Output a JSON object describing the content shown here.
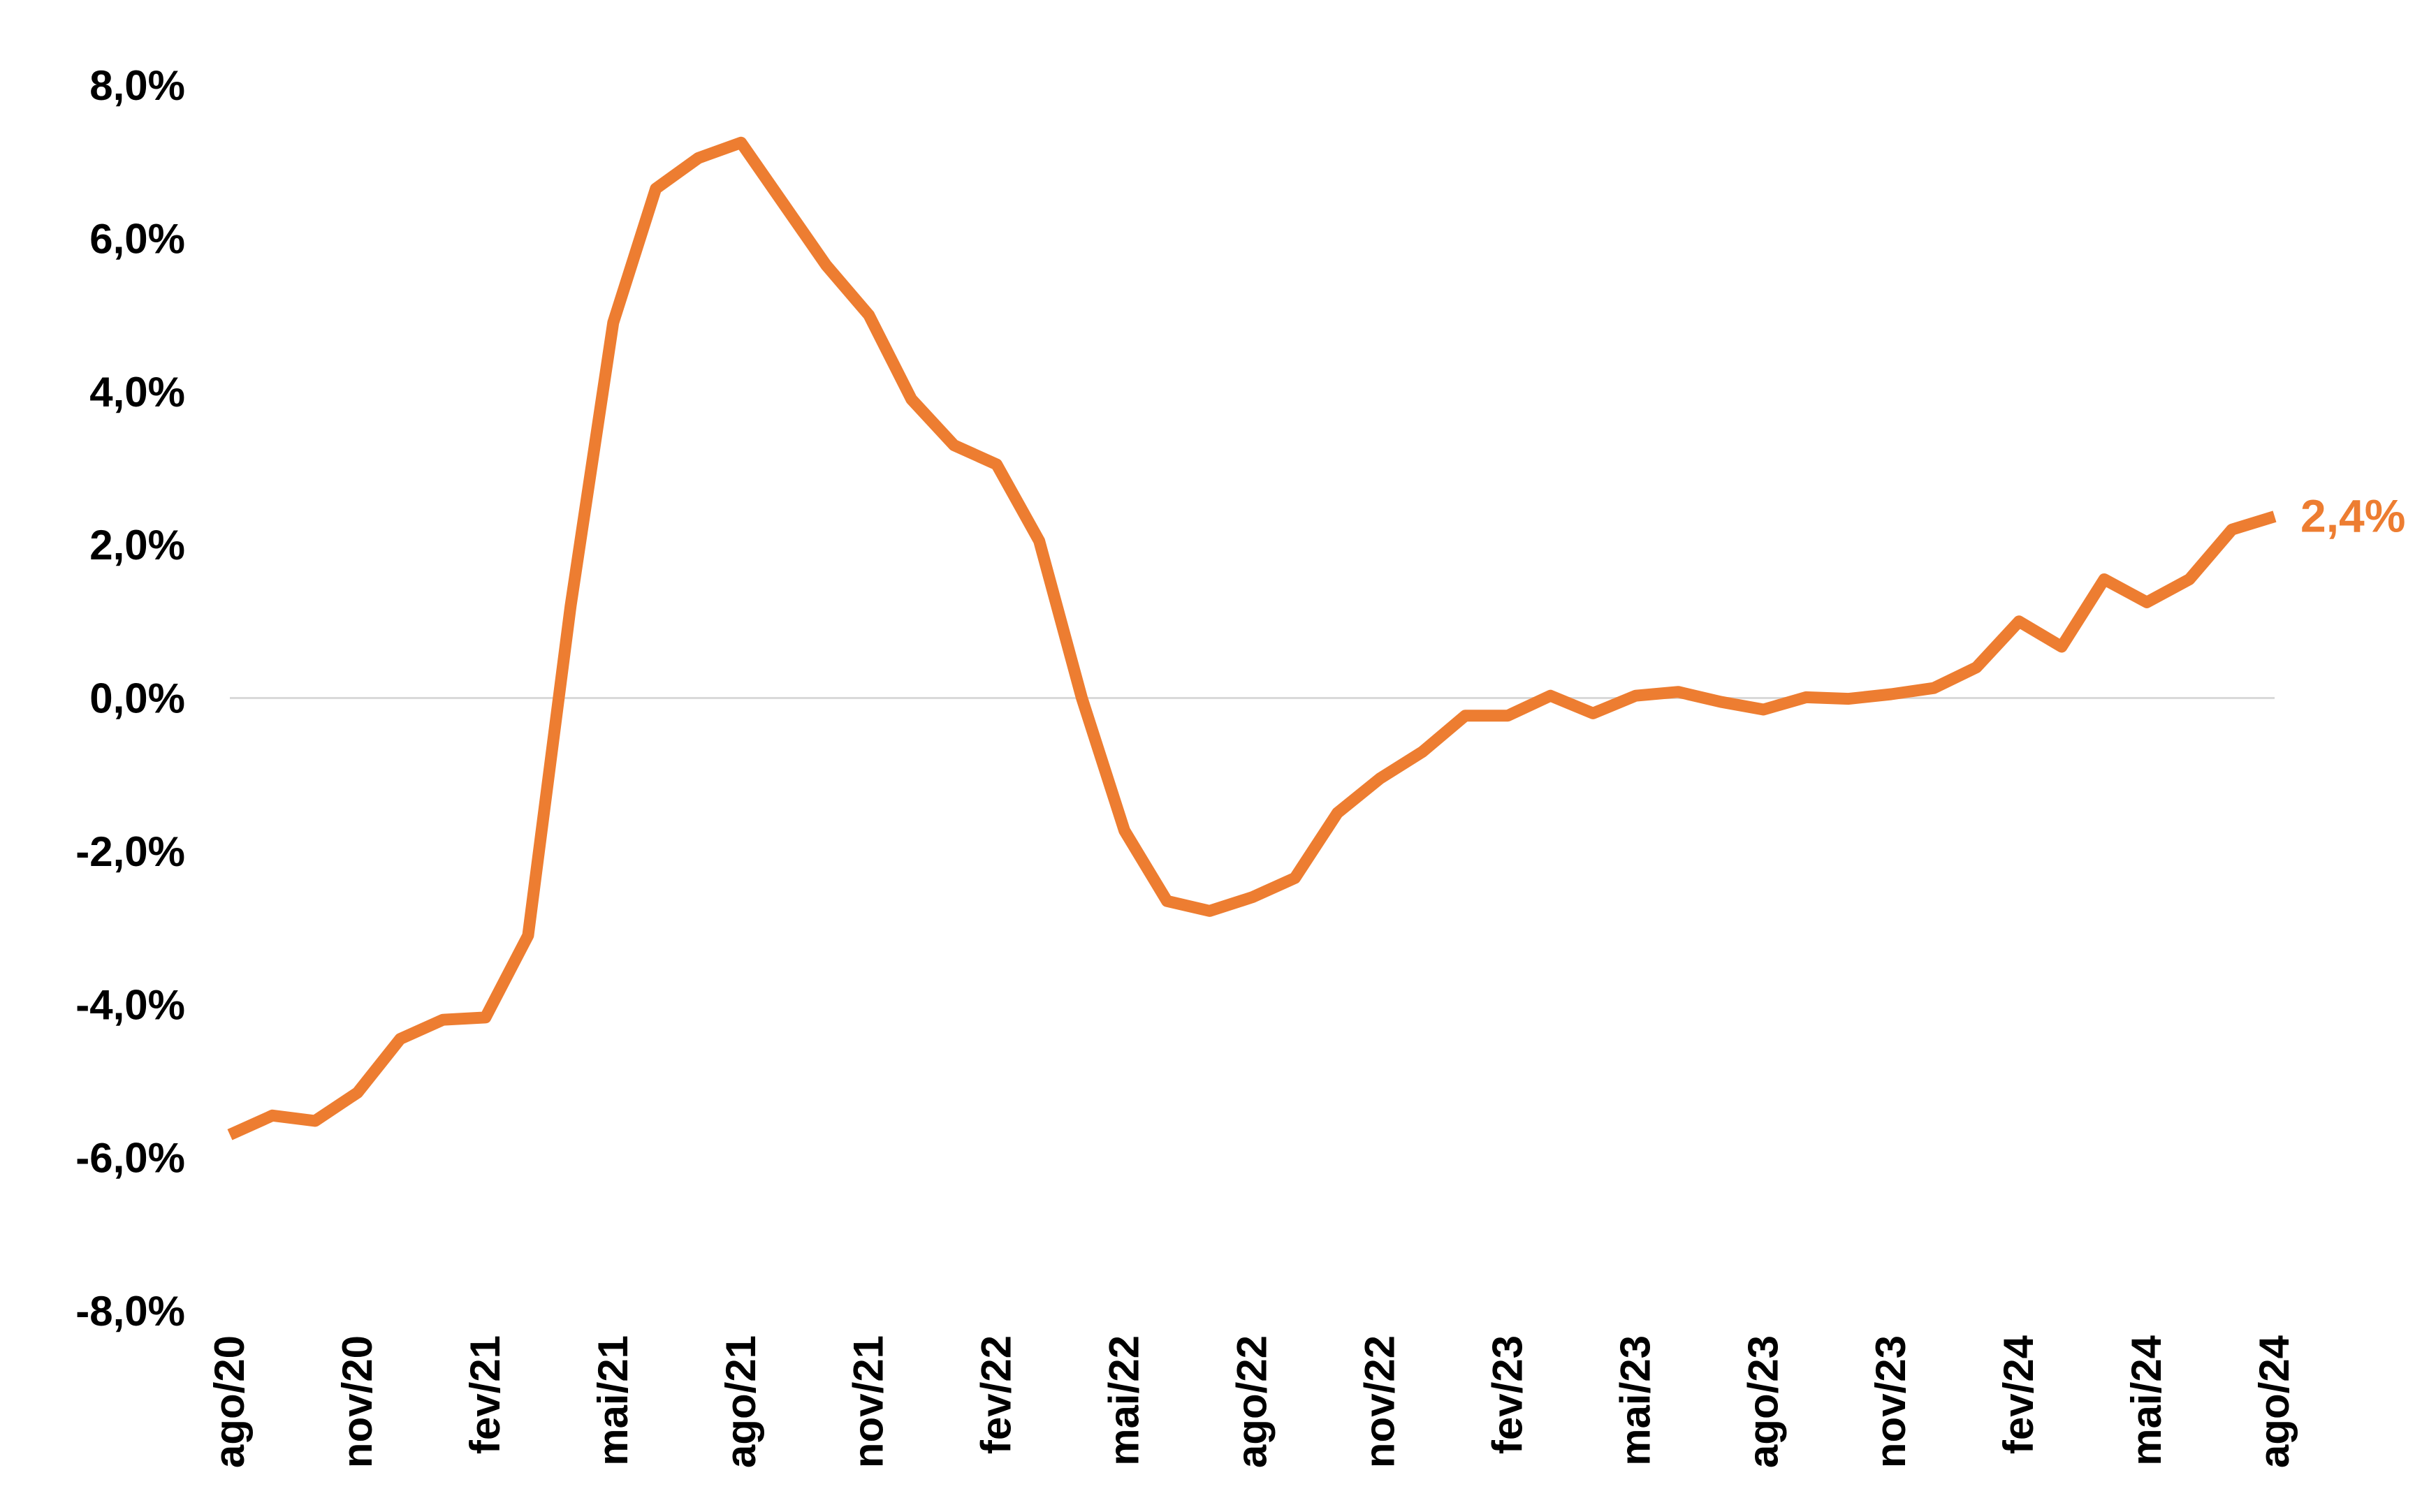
{
  "chart_data": {
    "type": "line",
    "title": "",
    "xlabel": "",
    "ylabel": "",
    "ylim": [
      -8,
      8
    ],
    "yticks": [
      {
        "value": 8,
        "label": "8,0%"
      },
      {
        "value": 6,
        "label": "6,0%"
      },
      {
        "value": 4,
        "label": "4,0%"
      },
      {
        "value": 2,
        "label": "2,0%"
      },
      {
        "value": 0,
        "label": "0,0%"
      },
      {
        "value": -2,
        "label": "-2,0%"
      },
      {
        "value": -4,
        "label": "-4,0%"
      },
      {
        "value": -6,
        "label": "-6,0%"
      },
      {
        "value": -8,
        "label": "-8,0%"
      }
    ],
    "x": [
      "ago/20",
      "set/20",
      "out/20",
      "nov/20",
      "dez/20",
      "jan/21",
      "fev/21",
      "mar/21",
      "abr/21",
      "mai/21",
      "jun/21",
      "jul/21",
      "ago/21",
      "set/21",
      "out/21",
      "nov/21",
      "dez/21",
      "jan/22",
      "fev/22",
      "mar/22",
      "abr/22",
      "mai/22",
      "jun/22",
      "jul/22",
      "ago/22",
      "set/22",
      "out/22",
      "nov/22",
      "dez/22",
      "jan/23",
      "fev/23",
      "mar/23",
      "abr/23",
      "mai/23",
      "jun/23",
      "jul/23",
      "ago/23",
      "set/23",
      "out/23",
      "nov/23",
      "dez/23",
      "jan/24",
      "fev/24",
      "mar/24",
      "abr/24",
      "mai/24",
      "jun/24",
      "jul/24",
      "ago/24"
    ],
    "xtick_labels": [
      "ago/20",
      "nov/20",
      "fev/21",
      "mai/21",
      "ago/21",
      "nov/21",
      "fev/22",
      "mai/22",
      "ago/22",
      "nov/22",
      "fev/23",
      "mai/23",
      "ago/23",
      "nov/23",
      "fev/24",
      "mai/24",
      "ago/24"
    ],
    "series": [
      {
        "color": "#ED7D31",
        "values": [
          -5.7,
          -5.45,
          -5.52,
          -5.15,
          -4.45,
          -4.2,
          -4.17,
          -3.1,
          1.2,
          4.9,
          6.65,
          7.05,
          7.25,
          6.45,
          5.65,
          5.0,
          3.9,
          3.3,
          3.05,
          2.05,
          0.0,
          -1.73,
          -2.65,
          -2.78,
          -2.6,
          -2.35,
          -1.5,
          -1.05,
          -0.7,
          -0.23,
          -0.23,
          0.03,
          -0.2,
          0.03,
          0.08,
          -0.05,
          -0.15,
          0.01,
          -0.01,
          0.05,
          0.13,
          0.4,
          1.0,
          0.67,
          1.55,
          1.25,
          1.55,
          2.2,
          2.37
        ]
      }
    ],
    "end_label": "2,4%",
    "zero_line": true,
    "grid": false,
    "legend": "none"
  }
}
